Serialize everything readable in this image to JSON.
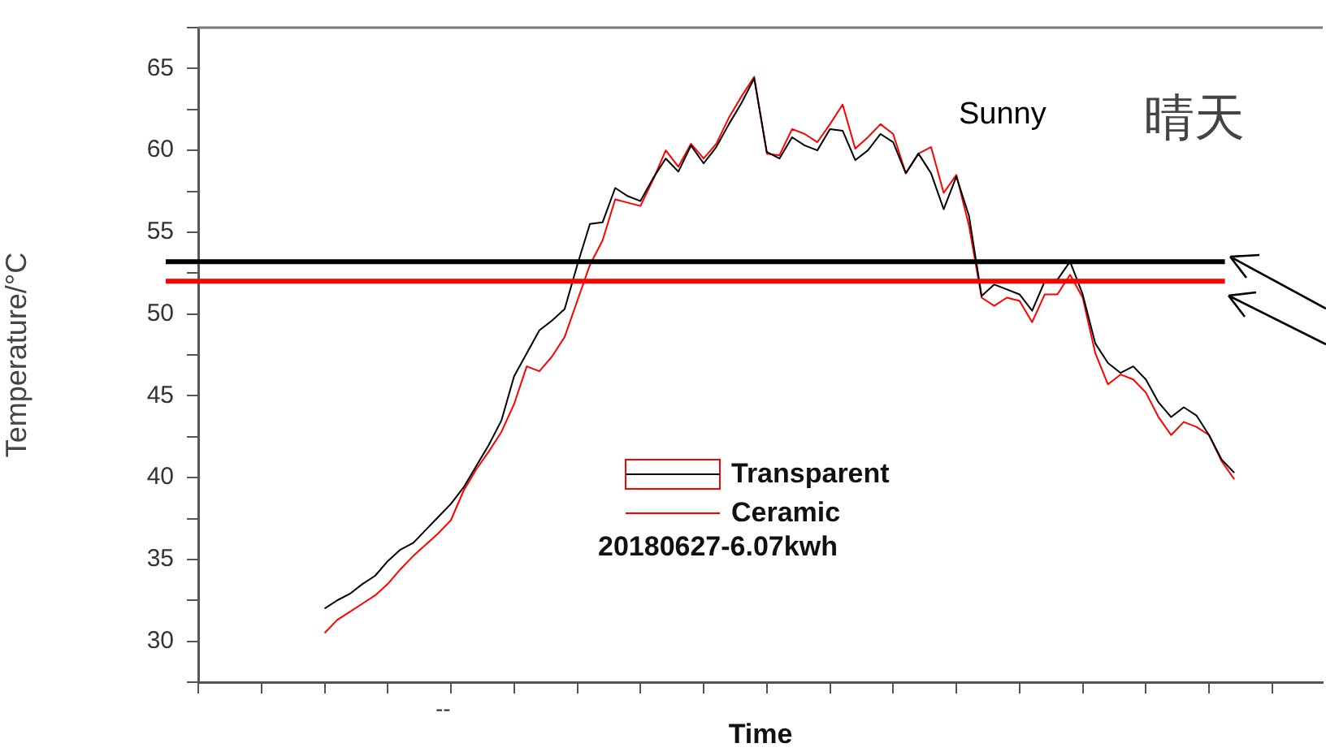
{
  "chart_data": {
    "type": "line",
    "xlabel": "Time",
    "ylabel": "Temperature/°C",
    "categories": [
      null,
      null,
      null,
      null,
      null,
      null,
      null,
      null,
      null,
      null,
      null,
      null,
      null,
      null,
      null,
      null,
      null,
      null,
      null,
      null,
      null,
      null,
      null,
      null,
      null,
      null,
      null,
      null,
      null,
      null,
      null,
      null,
      null,
      null,
      null,
      null,
      null,
      null,
      null,
      null,
      null,
      null,
      null,
      null,
      null,
      null,
      null,
      null,
      null,
      null,
      null,
      null,
      null,
      null,
      null,
      null,
      null,
      null,
      null,
      null,
      null,
      null,
      null,
      null,
      null,
      null,
      null,
      null,
      null,
      null,
      null,
      null,
      null,
      null,
      null,
      null,
      null,
      null,
      null,
      null,
      null,
      null,
      null,
      null,
      null,
      null,
      null,
      null,
      null,
      null
    ],
    "ylim": [
      27.5,
      67.5
    ],
    "yticks": [
      {
        "value": 27.5,
        "label": null
      },
      30,
      {
        "value": 32.5,
        "label": null
      },
      35,
      {
        "value": 37.5,
        "label": null
      },
      40,
      {
        "value": 42.5,
        "label": null
      },
      45,
      {
        "value": 47.5,
        "label": null
      },
      50,
      {
        "value": 52.5,
        "label": null
      },
      55,
      {
        "value": 57.5,
        "label": null
      },
      60,
      {
        "value": 62.5,
        "label": null
      },
      65,
      {
        "value": 67.5,
        "label": null
      }
    ],
    "grid": false,
    "legend": "bottom",
    "marker": "none",
    "line_style": "solid",
    "series": [
      {
        "name": "Transparent",
        "color": "#000000",
        "values": [
          null,
          null,
          null,
          null,
          null,
          null,
          null,
          null,
          null,
          null,
          32.0,
          32.5,
          32.9,
          33.5,
          34.0,
          34.9,
          35.6,
          36.0,
          36.8,
          37.6,
          38.4,
          39.4,
          40.7,
          42.0,
          43.5,
          46.2,
          47.6,
          49.0,
          49.6,
          50.3,
          53.0,
          55.5,
          55.6,
          57.7,
          57.2,
          56.9,
          58.3,
          59.5,
          58.7,
          60.3,
          59.2,
          60.2,
          61.6,
          62.9,
          64.4,
          59.9,
          59.5,
          60.8,
          60.3,
          60.0,
          61.3,
          61.2,
          59.4,
          60.0,
          61.0,
          60.5,
          58.6,
          59.8,
          58.6,
          56.4,
          58.4,
          56.0,
          51.1,
          51.8,
          51.5,
          51.2,
          50.2,
          52.0,
          52.1,
          53.2,
          51.2,
          48.2,
          47.0,
          46.4,
          46.8,
          46.0,
          44.6,
          43.7,
          44.3,
          43.8,
          42.6,
          41.1,
          40.3,
          null,
          null,
          null,
          null,
          null,
          null,
          null
        ]
      },
      {
        "name": "Ceramic",
        "color": "#ff0000",
        "values": [
          null,
          null,
          null,
          null,
          null,
          null,
          null,
          null,
          null,
          null,
          30.5,
          31.3,
          31.8,
          32.3,
          32.8,
          33.5,
          34.4,
          35.2,
          35.9,
          36.6,
          37.4,
          39.2,
          40.5,
          41.6,
          42.8,
          44.5,
          46.8,
          46.5,
          47.4,
          48.6,
          50.8,
          53.0,
          54.5,
          57.0,
          56.8,
          56.6,
          58.2,
          60.0,
          59.0,
          60.4,
          59.5,
          60.4,
          62.0,
          63.3,
          64.5,
          59.8,
          59.7,
          61.3,
          61.0,
          60.5,
          61.6,
          62.8,
          60.1,
          60.8,
          61.6,
          61.0,
          58.6,
          59.8,
          60.2,
          57.4,
          58.5,
          55.4,
          51.0,
          50.5,
          51.0,
          50.8,
          49.5,
          51.2,
          51.2,
          52.4,
          51.0,
          47.6,
          45.7,
          46.3,
          46.0,
          45.2,
          43.7,
          42.6,
          43.4,
          43.1,
          42.6,
          41.0,
          39.9,
          null,
          null,
          null,
          null,
          null,
          null,
          null
        ]
      }
    ],
    "ref_lines": [
      {
        "axis": "y",
        "value": 53.2,
        "color": "#000000"
      },
      {
        "axis": "y",
        "value": 52.0,
        "color": "#ff0000"
      }
    ],
    "annotations": [
      "Sunny",
      "晴天",
      "20180627-6.07kwh",
      "--"
    ]
  }
}
